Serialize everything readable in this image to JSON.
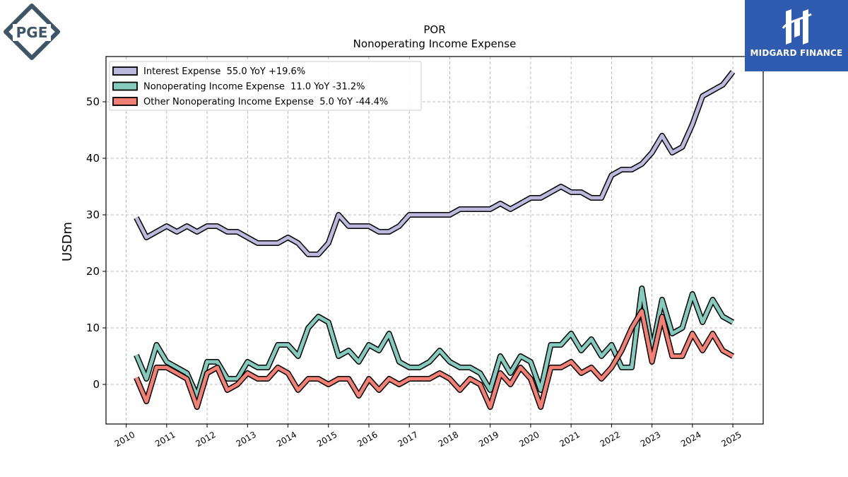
{
  "logos": {
    "left_text": "PGE",
    "right_text": "MIDGARD FINANCE"
  },
  "colors": {
    "interest": "#bcb9dc",
    "nonop": "#85cbbd",
    "other": "#f47f74",
    "logo_left": "#3e5566",
    "logo_right_bg": "#2f5bb0"
  },
  "chart_data": {
    "type": "line",
    "title": "POR",
    "subtitle": "Nonoperating Income Expense",
    "xlabel": "",
    "ylabel": "USDm",
    "xlim": [
      2009.5,
      2025.75
    ],
    "ylim": [
      -7,
      58
    ],
    "yticks": [
      0,
      10,
      20,
      30,
      40,
      50
    ],
    "xticks": [
      2010,
      2011,
      2012,
      2013,
      2014,
      2015,
      2016,
      2017,
      2018,
      2019,
      2020,
      2021,
      2022,
      2023,
      2024,
      2025
    ],
    "grid": true,
    "legend_position": "top-left",
    "x": [
      2010.25,
      2010.5,
      2010.75,
      2011.0,
      2011.25,
      2011.5,
      2011.75,
      2012.0,
      2012.25,
      2012.5,
      2012.75,
      2013.0,
      2013.25,
      2013.5,
      2013.75,
      2014.0,
      2014.25,
      2014.5,
      2014.75,
      2015.0,
      2015.25,
      2015.5,
      2015.75,
      2016.0,
      2016.25,
      2016.5,
      2016.75,
      2017.0,
      2017.25,
      2017.5,
      2017.75,
      2018.0,
      2018.25,
      2018.5,
      2018.75,
      2019.0,
      2019.25,
      2019.5,
      2019.75,
      2020.0,
      2020.25,
      2020.5,
      2020.75,
      2021.0,
      2021.25,
      2021.5,
      2021.75,
      2022.0,
      2022.25,
      2022.5,
      2022.75,
      2023.0,
      2023.25,
      2023.5,
      2023.75,
      2024.0,
      2024.25,
      2024.5,
      2024.75,
      2025.0
    ],
    "series": [
      {
        "name": "Interest Expense",
        "legend": "Interest Expense  55.0 YoY +19.6%",
        "color": "#bcb9dc",
        "values": [
          29.5,
          26,
          27,
          28,
          27,
          28,
          27,
          28,
          28,
          27,
          27,
          26,
          25,
          25,
          25,
          26,
          25,
          23,
          23,
          25,
          30,
          28,
          28,
          28,
          27,
          27,
          28,
          30,
          30,
          30,
          30,
          30,
          31,
          31,
          31,
          31,
          32,
          31,
          32,
          33,
          33,
          34,
          35,
          34,
          34,
          33,
          33,
          37,
          38,
          38,
          39,
          41,
          44,
          41,
          42,
          46,
          51,
          52,
          53,
          55.3
        ]
      },
      {
        "name": "Nonoperating Income Expense",
        "legend": "Nonoperating Income Expense  11.0 YoY -31.2%",
        "color": "#85cbbd",
        "values": [
          5.2,
          1,
          7,
          4,
          3,
          2,
          -2,
          4,
          4,
          1,
          1,
          4,
          3,
          3,
          7,
          7,
          5,
          10,
          12,
          11,
          5,
          6,
          4,
          7,
          6,
          9,
          4,
          3,
          3,
          4,
          6,
          4,
          3,
          3,
          2,
          -1,
          5,
          2,
          5,
          4,
          -1,
          7,
          7,
          9,
          6,
          8,
          5,
          7,
          3,
          3,
          17,
          6,
          15,
          9,
          10,
          16,
          11,
          15,
          12,
          11
        ]
      },
      {
        "name": "Other Nonoperating Income Expense",
        "legend": "Other Nonoperating Income Expense  5.0 YoY -44.4%",
        "color": "#f47f74",
        "values": [
          1.2,
          -3,
          3,
          3,
          2,
          1,
          -4,
          2,
          3,
          -1,
          0,
          2,
          1,
          1,
          3,
          2,
          -1,
          1,
          1,
          0,
          1,
          1,
          -2,
          1,
          -1,
          1,
          0,
          1,
          1,
          1,
          2,
          1,
          -1,
          1,
          0,
          -4,
          2,
          0,
          3,
          1,
          -4,
          3,
          3,
          4,
          2,
          3,
          1,
          3,
          6,
          10,
          13,
          4,
          12,
          5,
          5,
          9,
          6,
          9,
          6,
          5
        ]
      }
    ]
  }
}
